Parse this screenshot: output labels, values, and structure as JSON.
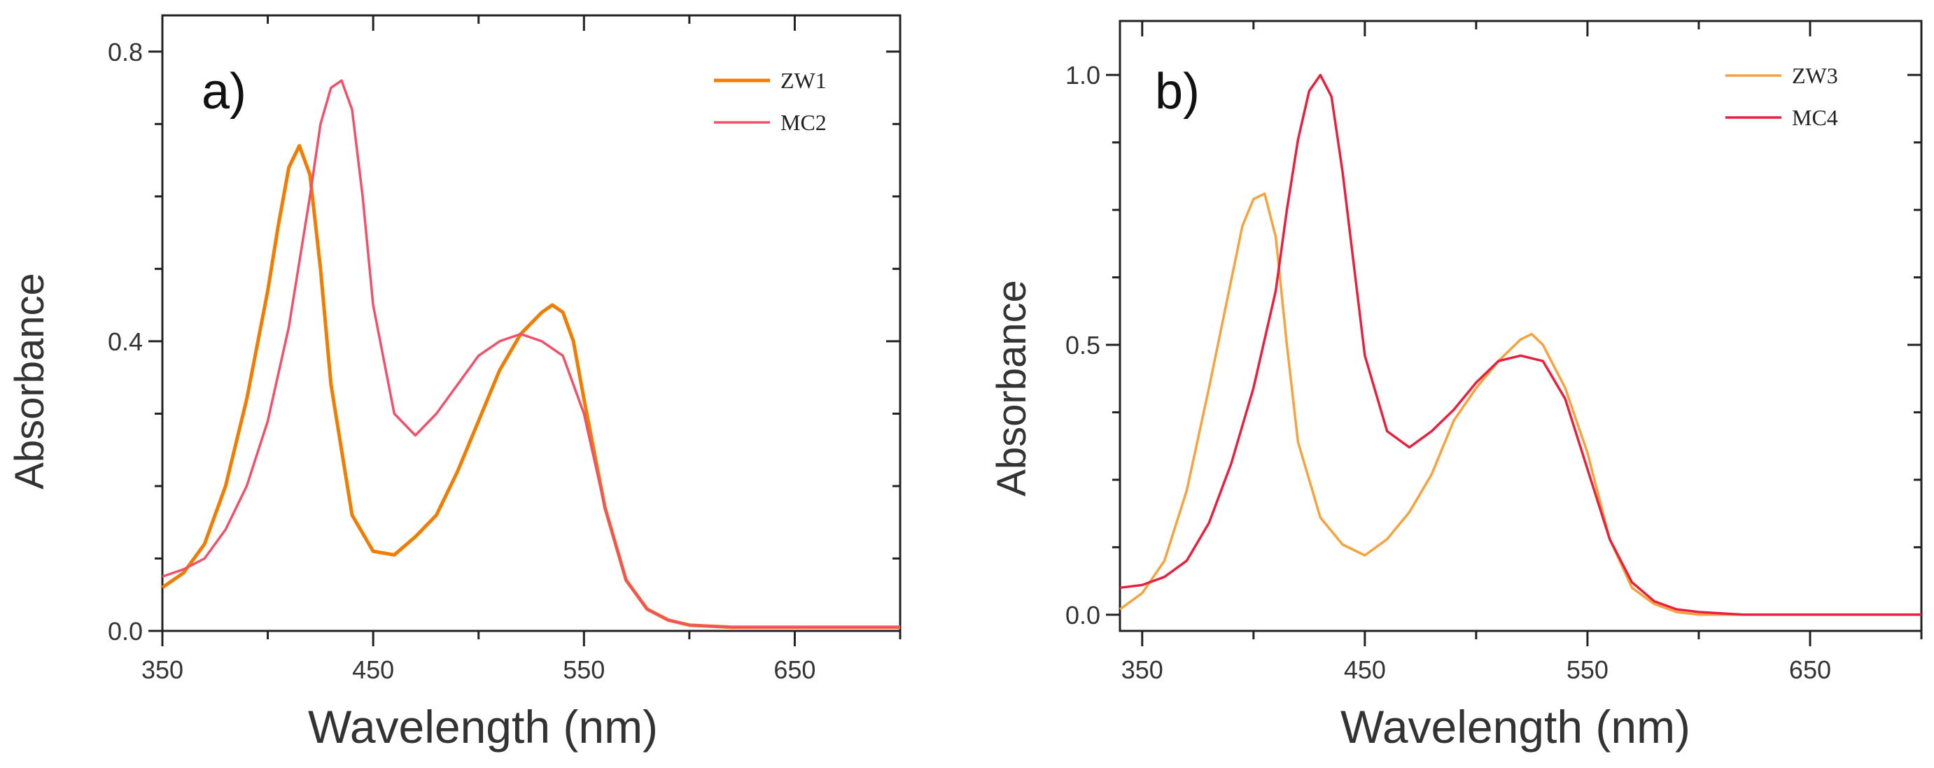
{
  "chart_data": [
    {
      "type": "line",
      "panel_label": "a)",
      "xlabel": "Wavelength (nm)",
      "ylabel": "Absorbance",
      "xlim": [
        350,
        700
      ],
      "ylim": [
        0.0,
        0.85
      ],
      "xticks": [
        "350",
        "450",
        "550",
        "650"
      ],
      "yticks": [
        "0.0",
        "0.4",
        "0.8"
      ],
      "legend": "top-right",
      "series": [
        {
          "name": "ZW1",
          "color": "#f07d00",
          "x": [
            350,
            360,
            370,
            380,
            390,
            400,
            405,
            410,
            415,
            420,
            425,
            430,
            440,
            450,
            460,
            470,
            480,
            490,
            500,
            510,
            520,
            530,
            535,
            540,
            545,
            550,
            560,
            570,
            580,
            590,
            600,
            620,
            650,
            680,
            700
          ],
          "y": [
            0.06,
            0.08,
            0.12,
            0.2,
            0.32,
            0.47,
            0.56,
            0.64,
            0.67,
            0.63,
            0.5,
            0.34,
            0.16,
            0.11,
            0.105,
            0.13,
            0.16,
            0.22,
            0.29,
            0.36,
            0.41,
            0.44,
            0.45,
            0.44,
            0.4,
            0.32,
            0.17,
            0.07,
            0.03,
            0.015,
            0.008,
            0.005,
            0.005,
            0.005,
            0.005
          ]
        },
        {
          "name": "MC2",
          "color": "#f0506a",
          "x": [
            350,
            360,
            370,
            380,
            390,
            400,
            410,
            420,
            425,
            430,
            435,
            440,
            445,
            450,
            460,
            470,
            480,
            490,
            500,
            510,
            520,
            530,
            540,
            550,
            560,
            570,
            580,
            590,
            600,
            620,
            650,
            680,
            700
          ],
          "y": [
            0.075,
            0.085,
            0.1,
            0.14,
            0.2,
            0.29,
            0.42,
            0.6,
            0.7,
            0.75,
            0.76,
            0.72,
            0.6,
            0.45,
            0.3,
            0.27,
            0.3,
            0.34,
            0.38,
            0.4,
            0.41,
            0.4,
            0.38,
            0.3,
            0.17,
            0.07,
            0.03,
            0.015,
            0.008,
            0.005,
            0.005,
            0.005,
            0.005
          ]
        }
      ]
    },
    {
      "type": "line",
      "panel_label": "b)",
      "xlabel": "Wavelength (nm)",
      "ylabel": "Absorbance",
      "xlim": [
        340,
        700
      ],
      "ylim": [
        -0.03,
        1.1
      ],
      "xticks": [
        "350",
        "450",
        "550",
        "650"
      ],
      "yticks": [
        "0.0",
        "0.5",
        "1.0"
      ],
      "legend": "top-right",
      "series": [
        {
          "name": "ZW3",
          "color": "#f7a23c",
          "x": [
            340,
            350,
            360,
            370,
            380,
            390,
            395,
            400,
            405,
            410,
            415,
            420,
            430,
            440,
            450,
            460,
            470,
            480,
            490,
            500,
            510,
            520,
            525,
            530,
            540,
            550,
            560,
            570,
            580,
            590,
            600,
            620,
            650,
            680,
            700
          ],
          "y": [
            0.01,
            0.04,
            0.1,
            0.23,
            0.42,
            0.62,
            0.72,
            0.77,
            0.78,
            0.7,
            0.5,
            0.32,
            0.18,
            0.13,
            0.11,
            0.14,
            0.19,
            0.26,
            0.36,
            0.42,
            0.47,
            0.51,
            0.52,
            0.5,
            0.42,
            0.3,
            0.14,
            0.05,
            0.02,
            0.005,
            0.0,
            0.0,
            0.0,
            0.0,
            0.0
          ]
        },
        {
          "name": "MC4",
          "color": "#e8203e",
          "x": [
            340,
            350,
            360,
            370,
            380,
            390,
            400,
            410,
            415,
            420,
            425,
            430,
            435,
            440,
            450,
            460,
            470,
            480,
            490,
            500,
            510,
            520,
            530,
            540,
            550,
            560,
            570,
            580,
            590,
            600,
            620,
            650,
            680,
            700
          ],
          "y": [
            0.05,
            0.055,
            0.07,
            0.1,
            0.17,
            0.28,
            0.42,
            0.6,
            0.75,
            0.88,
            0.97,
            1.0,
            0.96,
            0.82,
            0.48,
            0.34,
            0.31,
            0.34,
            0.38,
            0.43,
            0.47,
            0.48,
            0.47,
            0.4,
            0.27,
            0.14,
            0.06,
            0.025,
            0.01,
            0.005,
            0.0,
            0.0,
            0.0,
            0.0
          ]
        }
      ]
    }
  ]
}
